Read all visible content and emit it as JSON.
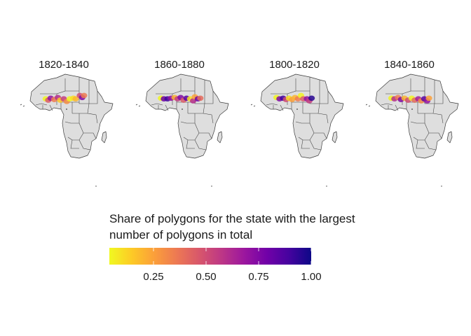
{
  "panels": [
    {
      "title": "1820-1840",
      "polygons": [
        {
          "lon": -15.2,
          "lat": 12.0,
          "v": 0.05
        },
        {
          "lon": -13.0,
          "lat": 11.0,
          "v": 0.45
        },
        {
          "lon": -11.0,
          "lat": 12.5,
          "v": 0.7
        },
        {
          "lon": -8.0,
          "lat": 11.5,
          "v": 0.35
        },
        {
          "lon": -5.0,
          "lat": 13.0,
          "v": 0.6
        },
        {
          "lon": -3.0,
          "lat": 11.0,
          "v": 0.15
        },
        {
          "lon": 0.0,
          "lat": 12.0,
          "v": 0.55
        },
        {
          "lon": 2.5,
          "lat": 10.0,
          "v": 0.3
        },
        {
          "lon": 5.0,
          "lat": 12.0,
          "v": 0.05
        },
        {
          "lon": 8.0,
          "lat": 12.5,
          "v": 0.1
        },
        {
          "lon": 10.0,
          "lat": 12.0,
          "v": 0.2
        },
        {
          "lon": 13.5,
          "lat": 14.5,
          "v": 0.5
        },
        {
          "lon": 15.5,
          "lat": 13.0,
          "v": 0.75
        },
        {
          "lon": 17.0,
          "lat": 14.5,
          "v": 0.35
        }
      ]
    },
    {
      "title": "1860-1880",
      "polygons": [
        {
          "lon": -15.5,
          "lat": 12.5,
          "v": 0.05
        },
        {
          "lon": -13.0,
          "lat": 12.0,
          "v": 0.8
        },
        {
          "lon": -10.0,
          "lat": 12.0,
          "v": 0.9
        },
        {
          "lon": -7.0,
          "lat": 12.5,
          "v": 0.7
        },
        {
          "lon": -4.0,
          "lat": 13.0,
          "v": 0.2
        },
        {
          "lon": -1.5,
          "lat": 12.0,
          "v": 0.55
        },
        {
          "lon": 1.0,
          "lat": 13.0,
          "v": 0.75
        },
        {
          "lon": 3.5,
          "lat": 11.0,
          "v": 0.45
        },
        {
          "lon": 6.0,
          "lat": 12.5,
          "v": 0.85
        },
        {
          "lon": 9.0,
          "lat": 12.0,
          "v": 0.1
        },
        {
          "lon": 11.5,
          "lat": 10.5,
          "v": 0.6
        },
        {
          "lon": 13.0,
          "lat": 13.5,
          "v": 0.25
        },
        {
          "lon": 15.5,
          "lat": 12.0,
          "v": 0.8
        },
        {
          "lon": 17.5,
          "lat": 12.5,
          "v": 0.4
        }
      ]
    },
    {
      "title": "1800-1820",
      "polygons": [
        {
          "lon": -15.0,
          "lat": 13.0,
          "v": 0.05
        },
        {
          "lon": -12.5,
          "lat": 12.0,
          "v": 0.75
        },
        {
          "lon": -9.5,
          "lat": 12.5,
          "v": 0.9
        },
        {
          "lon": -7.0,
          "lat": 11.5,
          "v": 0.5
        },
        {
          "lon": -4.5,
          "lat": 12.5,
          "v": 0.1
        },
        {
          "lon": -2.0,
          "lat": 11.5,
          "v": 0.25
        },
        {
          "lon": 0.5,
          "lat": 13.0,
          "v": 0.2
        },
        {
          "lon": 3.0,
          "lat": 12.0,
          "v": 0.35
        },
        {
          "lon": 5.5,
          "lat": 14.5,
          "v": 0.05
        },
        {
          "lon": 7.5,
          "lat": 12.0,
          "v": 0.45
        },
        {
          "lon": 10.5,
          "lat": 12.0,
          "v": 0.7
        },
        {
          "lon": 12.5,
          "lat": 10.5,
          "v": 0.55
        },
        {
          "lon": 14.5,
          "lat": 12.5,
          "v": 0.95
        }
      ]
    },
    {
      "title": "1840-1860",
      "polygons": [
        {
          "lon": -15.0,
          "lat": 12.5,
          "v": 0.05
        },
        {
          "lon": -12.5,
          "lat": 12.0,
          "v": 0.6
        },
        {
          "lon": -9.5,
          "lat": 13.0,
          "v": 0.35
        },
        {
          "lon": -7.0,
          "lat": 11.5,
          "v": 0.75
        },
        {
          "lon": -4.0,
          "lat": 12.5,
          "v": 0.2
        },
        {
          "lon": -1.0,
          "lat": 11.0,
          "v": 0.5
        },
        {
          "lon": 2.0,
          "lat": 12.5,
          "v": 0.05
        },
        {
          "lon": 4.5,
          "lat": 11.0,
          "v": 0.4
        },
        {
          "lon": 7.5,
          "lat": 12.0,
          "v": 0.65
        },
        {
          "lon": 10.0,
          "lat": 10.5,
          "v": 0.3
        },
        {
          "lon": 12.5,
          "lat": 12.0,
          "v": 0.85
        },
        {
          "lon": 15.0,
          "lat": 10.5,
          "v": 0.7
        },
        {
          "lon": 16.5,
          "lat": 12.5,
          "v": 0.25
        }
      ]
    }
  ],
  "legend": {
    "title_line1": "Share of polygons for the state with the largest",
    "title_line2": "number of polygons in total",
    "ticks": [
      {
        "value": 0.25,
        "label": "0.25"
      },
      {
        "value": 0.5,
        "label": "0.50"
      },
      {
        "value": 0.75,
        "label": "0.75"
      },
      {
        "value": 1.0,
        "label": "1.00"
      }
    ],
    "range": [
      0.04,
      1.0
    ],
    "colors": [
      "#f0f921",
      "#fdca26",
      "#fb9f3a",
      "#ed7953",
      "#d8576b",
      "#bd3786",
      "#9c179e",
      "#7201a8",
      "#46039f",
      "#0d0887"
    ]
  }
}
